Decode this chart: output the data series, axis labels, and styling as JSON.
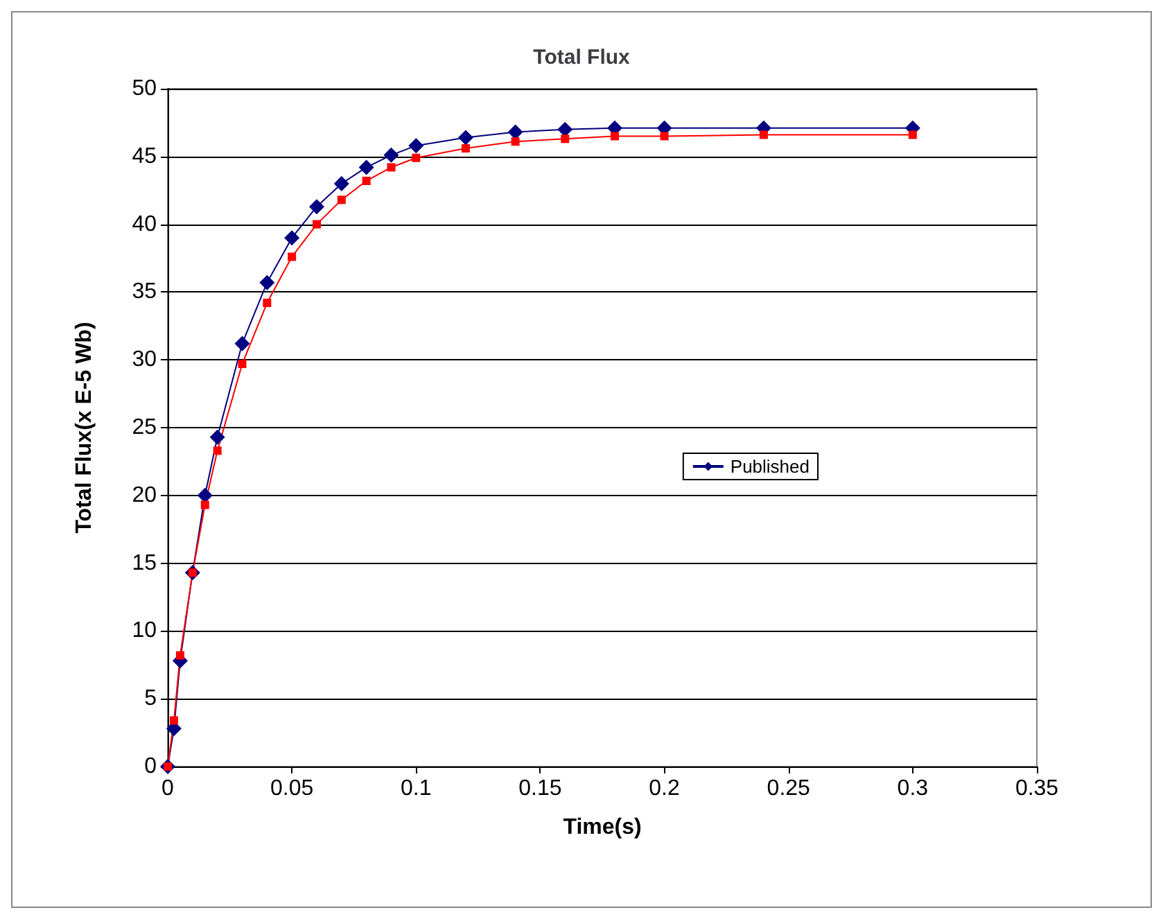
{
  "chart_data": {
    "type": "line",
    "title": "Total Flux",
    "xlabel": "Time(s)",
    "ylabel": "Total Flux(x E-5 Wb)",
    "x": [
      0,
      0.0025,
      0.005,
      0.01,
      0.015,
      0.02,
      0.03,
      0.04,
      0.05,
      0.06,
      0.07,
      0.08,
      0.09,
      0.1,
      0.12,
      0.14,
      0.16,
      0.18,
      0.2,
      0.24,
      0.3
    ],
    "series": [
      {
        "name": "Published",
        "color": "#000080",
        "marker": "diamond",
        "values": [
          0,
          2.8,
          7.8,
          14.3,
          20,
          24.3,
          31.2,
          35.7,
          39,
          41.3,
          43,
          44.2,
          45.1,
          45.8,
          46.4,
          46.8,
          47,
          47.1,
          47.1,
          47.1,
          47.1
        ]
      },
      {
        "color": "#ff0000",
        "marker": "square",
        "values": [
          0,
          3.4,
          8.2,
          14.3,
          19.3,
          23.3,
          29.7,
          34.2,
          37.6,
          40,
          41.8,
          43.2,
          44.2,
          44.9,
          45.6,
          46.1,
          46.3,
          46.5,
          46.5,
          46.6,
          46.6
        ]
      }
    ],
    "xlim": [
      0,
      0.35
    ],
    "xticks": [
      0,
      0.05,
      0.1,
      0.15,
      0.2,
      0.25,
      0.3,
      0.35
    ],
    "ylim": [
      0,
      50
    ],
    "yticks": [
      0,
      5,
      10,
      15,
      20,
      25,
      30,
      35,
      40,
      45,
      50
    ],
    "grid": "y",
    "legend": "right",
    "line_style": "solid"
  }
}
